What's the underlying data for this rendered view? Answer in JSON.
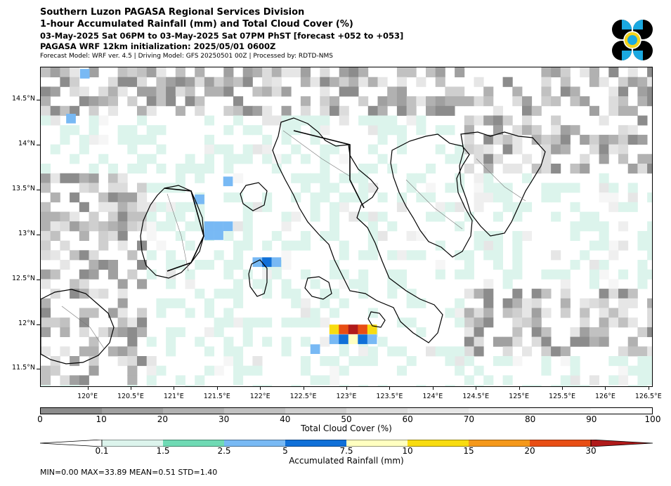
{
  "header": {
    "line1": "Southern Luzon PAGASA Regional Services Division",
    "line2": "1-hour Accumulated Rainfall (mm) and Total Cloud Cover (%)",
    "line3": "03-May-2025 Sat 06PM to 03-May-2025 Sat 07PM PhST [forecast +052 to +053]",
    "line4": "PAGASA WRF 12km initialization: 2025/05/01 0600Z",
    "line5": "Forecast Model: WRF ver. 4.5 | Driving Model: GFS 20250501 00Z | Processed by: RDTD-NMS"
  },
  "logo": {
    "name": "pagasa-logo",
    "colors": [
      "#000000",
      "#1ba9e1",
      "#f5d31c"
    ]
  },
  "map": {
    "lon_range": [
      119.45,
      126.55
    ],
    "lat_range": [
      11.3,
      14.87
    ],
    "x_ticks": [
      "120°E",
      "120.5°E",
      "121°E",
      "121.5°E",
      "122°E",
      "122.5°E",
      "123°E",
      "123.5°E",
      "124°E",
      "124.5°E",
      "125°E",
      "125.5°E",
      "126°E",
      "126.5°E"
    ],
    "x_tick_values": [
      120,
      120.5,
      121,
      121.5,
      122,
      122.5,
      123,
      123.5,
      124,
      124.5,
      125,
      125.5,
      126,
      126.5
    ],
    "y_ticks": [
      "14.5°N",
      "14°N",
      "13.5°N",
      "13°N",
      "12.5°N",
      "12°N",
      "11.5°N"
    ],
    "y_tick_values": [
      14.5,
      14.0,
      13.5,
      13.0,
      12.5,
      12.0,
      11.5
    ],
    "rain_cells": [
      {
        "lon": 122.85,
        "lat": 11.95,
        "mm": 10
      },
      {
        "lon": 122.96,
        "lat": 11.95,
        "mm": 20
      },
      {
        "lon": 123.07,
        "lat": 11.95,
        "mm": 30
      },
      {
        "lon": 123.18,
        "lat": 11.95,
        "mm": 20
      },
      {
        "lon": 123.29,
        "lat": 11.95,
        "mm": 12
      },
      {
        "lon": 122.85,
        "lat": 11.84,
        "mm": 3
      },
      {
        "lon": 122.96,
        "lat": 11.84,
        "mm": 6
      },
      {
        "lon": 123.07,
        "lat": 11.84,
        "mm": 8
      },
      {
        "lon": 123.18,
        "lat": 11.84,
        "mm": 6
      },
      {
        "lon": 123.29,
        "lat": 11.84,
        "mm": 4
      },
      {
        "lon": 122.07,
        "lat": 12.7,
        "mm": 6
      },
      {
        "lon": 121.96,
        "lat": 12.7,
        "mm": 3
      },
      {
        "lon": 122.18,
        "lat": 12.7,
        "mm": 3
      },
      {
        "lon": 121.4,
        "lat": 13.1,
        "mm": 3
      },
      {
        "lon": 121.51,
        "lat": 13.1,
        "mm": 3
      },
      {
        "lon": 121.4,
        "lat": 13.0,
        "mm": 3
      },
      {
        "lon": 121.51,
        "lat": 13.0,
        "mm": 4
      },
      {
        "lon": 121.62,
        "lat": 13.1,
        "mm": 3
      },
      {
        "lon": 121.29,
        "lat": 13.4,
        "mm": 3
      },
      {
        "lon": 121.62,
        "lat": 13.6,
        "mm": 3
      },
      {
        "lon": 119.8,
        "lat": 14.3,
        "mm": 3
      },
      {
        "lon": 119.96,
        "lat": 14.8,
        "mm": 3
      },
      {
        "lon": 122.63,
        "lat": 11.73,
        "mm": 3
      }
    ]
  },
  "cloud_colorbar": {
    "title": "Total Cloud Cover (%)",
    "labels": [
      "0",
      "10",
      "20",
      "30",
      "40",
      "50",
      "60",
      "70",
      "80",
      "90",
      "100"
    ],
    "colors": [
      "#8c8c8c",
      "#a0a0a0",
      "#b1b1b1",
      "#c1c1c1",
      "#cfcfcf",
      "#dcdcdc",
      "#e6e6e6",
      "#efefef",
      "#f6f6f6",
      "#fcfcfc"
    ]
  },
  "rain_colorbar": {
    "title": "Accumulated Rainfall (mm)",
    "labels": [
      "0.1",
      "1.5",
      "2.5",
      "5",
      "7.5",
      "10",
      "15",
      "20",
      "30"
    ],
    "colors": [
      "#ffffff",
      "#dcf4ec",
      "#6fdab4",
      "#78b9f4",
      "#1070d8",
      "#ffffc0",
      "#f8dc10",
      "#f5981a",
      "#e84e14",
      "#b01a1a"
    ]
  },
  "stats": "MIN=0.00   MAX=33.89   MEAN=0.51   STD=1.40"
}
